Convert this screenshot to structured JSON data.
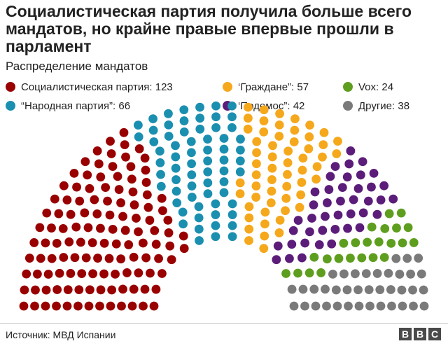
{
  "header": {
    "title": "Социалистическая партия получила больше всего мандатов, но крайне правые впервые прошли в парламент"
  },
  "footer": {
    "source": "Источник: МВД Испании",
    "brand_letters": [
      "B",
      "B",
      "C"
    ]
  },
  "chart_data": {
    "type": "parliament",
    "subtitle": "Распределение мандатов",
    "total_seats": 350,
    "parties": [
      {
        "name": "Социалистическая партия",
        "seats": 123,
        "color": "#990000",
        "legend_label": "Социалистическая партия: 123"
      },
      {
        "name": "\"Народная партия\"",
        "seats": 66,
        "color": "#1b8fb0",
        "legend_label": "“Народная партия”: 66"
      },
      {
        "name": "'Граждане'",
        "seats": 57,
        "color": "#f5a81c",
        "legend_label": "‘Граждане”: 57"
      },
      {
        "name": "'Подемос'",
        "seats": 42,
        "color": "#5c1c7a",
        "legend_label": "‘Подемос”: 42"
      },
      {
        "name": "Vox",
        "seats": 24,
        "color": "#5e9e1e",
        "legend_label": "Vox: 24"
      },
      {
        "name": "Другие",
        "seats": 38,
        "color": "#7a7a7a",
        "legend_label": "Другие: 38"
      }
    ],
    "seat_order": [
      "Социалистическая партия",
      "\"Народная партия\"",
      "'Граждане'",
      "'Подемос'",
      "Vox",
      "Другие"
    ],
    "legend_placement": "top, three columns",
    "legend_order": [
      0,
      2,
      4,
      1,
      3,
      5
    ]
  }
}
